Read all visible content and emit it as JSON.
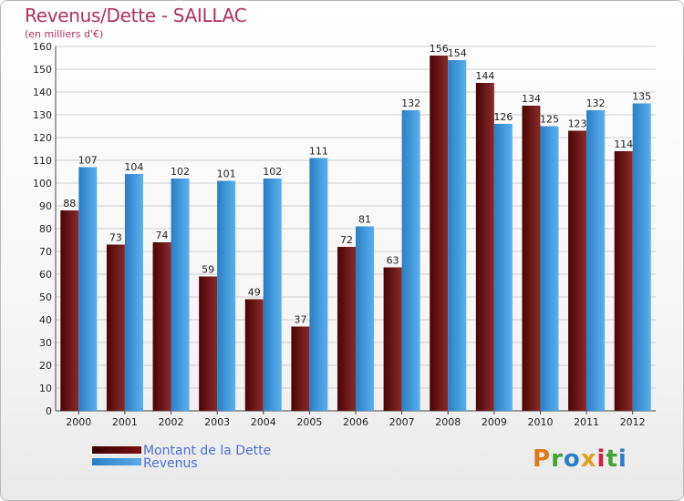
{
  "title": "Revenus/Dette - SAILLAC",
  "subtitle": "(en milliers d'€)",
  "logo": "Proxiti",
  "colors": {
    "dette_dark": "#5a0a0a",
    "dette_light": "#8a2a2a",
    "revenus_dark": "#2a7fc4",
    "revenus_light": "#5ab0ee",
    "title": "#b03060",
    "legend_text": "#4f6fd8"
  },
  "chart_data": {
    "type": "bar",
    "categories": [
      "2000",
      "2001",
      "2002",
      "2003",
      "2004",
      "2005",
      "2006",
      "2007",
      "2008",
      "2009",
      "2010",
      "2011",
      "2012"
    ],
    "series": [
      {
        "name": "Montant de la Dette",
        "values": [
          88,
          73,
          74,
          59,
          49,
          37,
          72,
          63,
          156,
          144,
          134,
          123,
          114
        ]
      },
      {
        "name": "Revenus",
        "values": [
          107,
          104,
          102,
          101,
          102,
          111,
          81,
          132,
          154,
          126,
          125,
          132,
          135
        ]
      }
    ],
    "ylim": [
      0,
      160
    ],
    "yticks": [
      0,
      10,
      20,
      30,
      40,
      50,
      60,
      70,
      80,
      90,
      100,
      110,
      120,
      130,
      140,
      150,
      160
    ],
    "grid": true,
    "legend": "bottom-left"
  }
}
